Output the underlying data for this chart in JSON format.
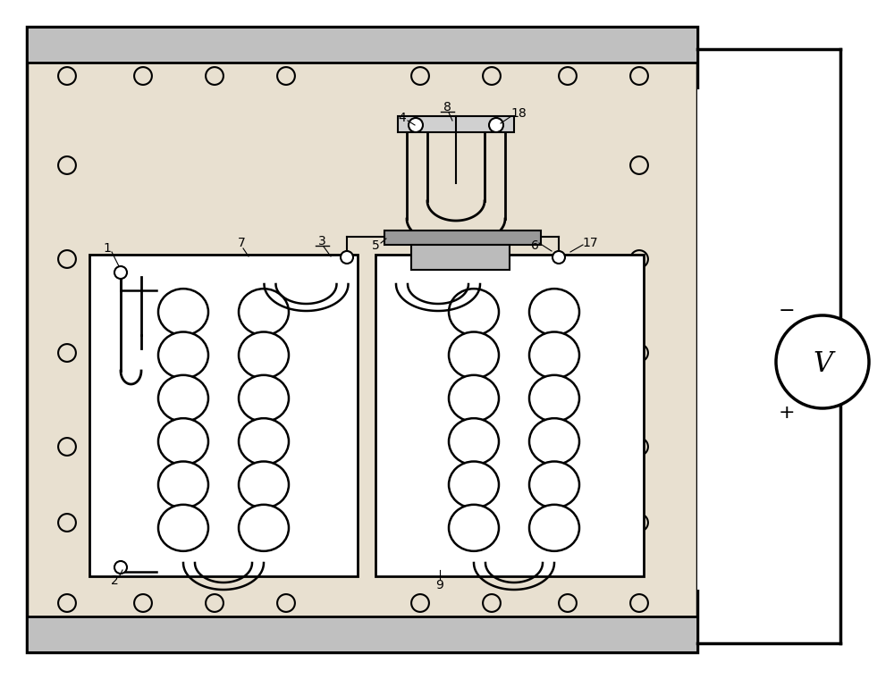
{
  "bg_color": "#e8e0d0",
  "outer_bg": "#ffffff",
  "panel_bg": "#e8e0d0",
  "line_color": "#000000",
  "figsize": [
    10.0,
    7.6
  ],
  "dpi": 100,
  "hole_r": 0.018,
  "coil_lw": 1.8,
  "label_fs": 10
}
